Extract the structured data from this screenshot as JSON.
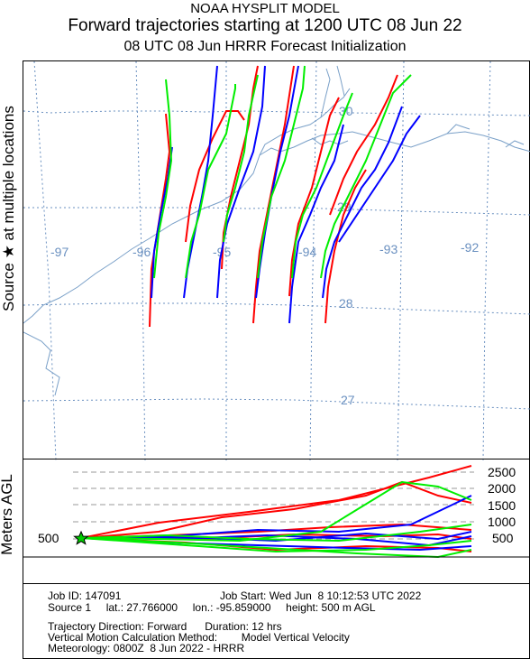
{
  "header": {
    "title1": "NOAA HYSPLIT MODEL",
    "title2": "Forward trajectories starting at 1200 UTC 08 Jun 22",
    "title3": "08 UTC 08 Jun    HRRR  Forecast Initialization"
  },
  "side_labels": {
    "source": "Source ★ at multiple locations",
    "agl": "Meters AGL"
  },
  "map": {
    "longitude_labels": [
      "-97",
      "-96",
      "-95",
      "-94",
      "-93",
      "-92"
    ],
    "latitude_labels": [
      "30",
      "29",
      "28",
      "27"
    ],
    "colors": {
      "grid": "#6a90c0",
      "coast": "#7aa0c8",
      "red": "#ff0000",
      "blue": "#0000ff",
      "green": "#00ee00"
    }
  },
  "height_axis": {
    "labels": [
      "2500",
      "2000",
      "1500",
      "1000",
      "500"
    ],
    "start_label": "500"
  },
  "info": {
    "job_id": "Job ID: 147091",
    "job_start": "Job Start: Wed Jun  8 10:12:53 UTC 2022",
    "source": "Source 1     lat.: 27.766000     lon.: -95.859000     height: 500 m AGL",
    "direction": "Trajectory Direction: Forward      Duration: 12 hrs",
    "vertical": "Vertical Motion Calculation Method:        Model Vertical Velocity",
    "meteorology": "Meteorology: 0800Z  8 Jun 2022 - HRRR"
  }
}
